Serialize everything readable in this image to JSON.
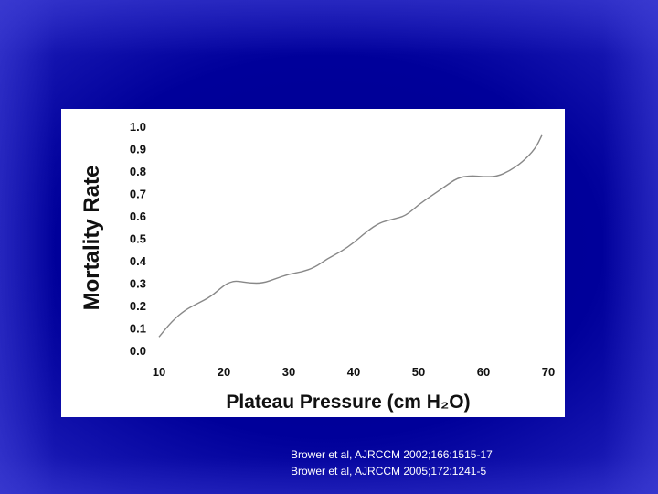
{
  "chart_data": {
    "type": "line",
    "xlabel": "Plateau Pressure (cm H₂O)",
    "ylabel": "Mortality Rate",
    "xlim": [
      10,
      70
    ],
    "ylim": [
      0,
      1.0
    ],
    "x_ticks": [
      "10",
      "20",
      "30",
      "40",
      "50",
      "60",
      "70"
    ],
    "y_ticks": [
      "0.0",
      "0.1",
      "0.2",
      "0.3",
      "0.4",
      "0.5",
      "0.6",
      "0.7",
      "0.8",
      "0.9",
      "1.0"
    ],
    "grid": false,
    "series": [
      {
        "x": [
          10,
          12,
          14,
          16,
          18,
          20,
          21,
          22,
          24,
          26,
          28,
          30,
          32,
          34,
          36,
          38,
          40,
          42,
          44,
          46,
          48,
          50,
          52,
          54,
          56,
          58,
          60,
          62,
          64,
          66,
          68,
          69
        ],
        "y": [
          0.06,
          0.13,
          0.18,
          0.21,
          0.24,
          0.29,
          0.305,
          0.31,
          0.3,
          0.3,
          0.32,
          0.34,
          0.35,
          0.37,
          0.41,
          0.44,
          0.48,
          0.53,
          0.57,
          0.585,
          0.6,
          0.65,
          0.69,
          0.73,
          0.77,
          0.78,
          0.775,
          0.775,
          0.8,
          0.84,
          0.9,
          0.96
        ]
      }
    ]
  },
  "colors": {
    "background": "#00009a",
    "panel": "#ffffff",
    "line": "#888888",
    "text": "#111111"
  },
  "citations": [
    "Brower et al, AJRCCM 2002;166:1515-17",
    "Brower et al, AJRCCM 2005;172:1241-5"
  ]
}
